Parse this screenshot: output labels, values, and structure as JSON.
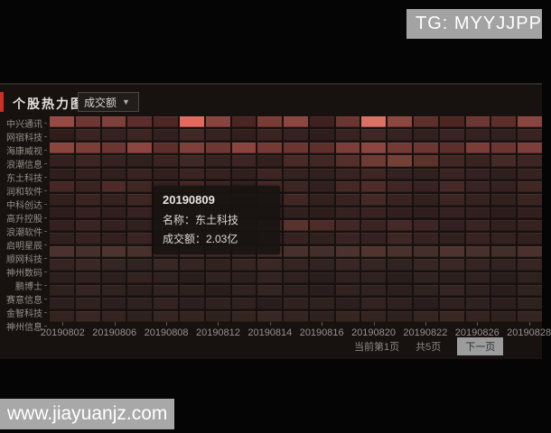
{
  "overlays": {
    "tg_label": "TG: MYYJJPP",
    "watermark": "www.jiayuanjz.com"
  },
  "panel": {
    "title": "个股热力图",
    "metric_dropdown": {
      "value": "成交额",
      "caret": "▼"
    }
  },
  "tooltip": {
    "date": "20190809",
    "name_line": "名称：东土科技",
    "value_line": "成交额：2.03亿"
  },
  "pagination": {
    "current": "当前第1页",
    "total": "共5页",
    "next": "下一页"
  },
  "chart_data": {
    "type": "heatmap",
    "title": "个股热力图",
    "metric": "成交额",
    "legend_position": "none",
    "rows": [
      "中兴通讯",
      "网宿科技",
      "海康威视",
      "浪潮信息",
      "东土科技",
      "润和软件",
      "中科创达",
      "高升控股",
      "浪潮软件",
      "启明星辰",
      "顺网科技",
      "神州数码",
      "鹏博士",
      "赛意信息",
      "金智科技",
      "神州信息"
    ],
    "n_columns": 19,
    "x_tick_labels": [
      "20190802",
      "20190806",
      "20190808",
      "20190812",
      "20190814",
      "20190816",
      "20190820",
      "20190822",
      "20190826",
      "20190828"
    ],
    "highlight": {
      "row": "东土科技",
      "date": "20190809",
      "value": "2.03亿"
    },
    "cells": [
      [
        "#954a44",
        "#6e3733",
        "#7d403b",
        "#5c2e2b",
        "#4c2724",
        "#e26a5c",
        "#8a443f",
        "#4a2522",
        "#7a3c37",
        "#8c4540",
        "#3f2220",
        "#6b3531",
        "#d97265",
        "#8c4741",
        "#5d302c",
        "#4b2623",
        "#6c3733",
        "#5c2f2b",
        "#8a4540"
      ],
      [
        "#2e1d1b",
        "#3a2422",
        "#342120",
        "#3c2523",
        "#32201e",
        "#402826",
        "#362221",
        "#301f1d",
        "#3a2422",
        "#342120",
        "#2e1d1b",
        "#382322",
        "#3e2724",
        "#362221",
        "#31201e",
        "#3a2423",
        "#342120",
        "#30201e",
        "#382322"
      ],
      [
        "#8a453f",
        "#7b3e39",
        "#6b3632",
        "#8c4540",
        "#5c2f2b",
        "#7d403b",
        "#6d3733",
        "#8a443e",
        "#743a36",
        "#6b3532",
        "#5d302c",
        "#7b3e3a",
        "#8c4641",
        "#743b36",
        "#6c3733",
        "#5c2f2c",
        "#7a3d38",
        "#6b3632",
        "#7c3f3a"
      ],
      [
        "#34211f",
        "#3c2523",
        "#362221",
        "#30201e",
        "#3a2422",
        "#402826",
        "#362221",
        "#3c2524",
        "#32201e",
        "#4a2a27",
        "#422825",
        "#55302b",
        "#6e3a34",
        "#74403a",
        "#5c322d",
        "#422825",
        "#3a2422",
        "#452a27",
        "#3c2523"
      ],
      [
        "#2e1e1c",
        "#342120",
        "#30201e",
        "#382322",
        "#32201e",
        "#3a2423",
        "#342120",
        "#2f1f1d",
        "#3c2523",
        "#342221",
        "#30201e",
        "#382322",
        "#3e2624",
        "#342121",
        "#30201e",
        "#3a2423",
        "#342121",
        "#2f1f1d",
        "#362221"
      ],
      [
        "#452826",
        "#3a2422",
        "#4c2b28",
        "#402724",
        "#362221",
        "#4a2a27",
        "#3e2624",
        "#342120",
        "#482a26",
        "#3c2523",
        "#30201e",
        "#442926",
        "#4e2c29",
        "#402725",
        "#382322",
        "#442927",
        "#3a2423",
        "#342120",
        "#402724"
      ],
      [
        "#32201e",
        "#3a2422",
        "#342120",
        "#3e2624",
        "#32201e",
        "#422825",
        "#362221",
        "#30201e",
        "#3a2423",
        "#402724",
        "#32201e",
        "#382322",
        "#442926",
        "#382322",
        "#32201e",
        "#3c2523",
        "#362221",
        "#30201e",
        "#3a2422"
      ],
      [
        "#2d1d1b",
        "#342120",
        "#2f1f1d",
        "#362221",
        "#30201e",
        "#382322",
        "#32201e",
        "#2d1e1c",
        "#342121",
        "#30201e",
        "#2c1d1b",
        "#342120",
        "#382322",
        "#32201e",
        "#2e1e1c",
        "#342121",
        "#30201e",
        "#2c1d1b",
        "#32201e"
      ],
      [
        "#34211f",
        "#3a2422",
        "#342120",
        "#30201e",
        "#3c2523",
        "#362221",
        "#32201e",
        "#442926",
        "#4e2d29",
        "#58322c",
        "#4c2b27",
        "#422825",
        "#3a2423",
        "#442927",
        "#3c2524",
        "#342121",
        "#3a2422",
        "#32201e",
        "#362221"
      ],
      [
        "#30201e",
        "#362221",
        "#32201e",
        "#3a2422",
        "#342120",
        "#30201e",
        "#382322",
        "#32201e",
        "#3c2524",
        "#362221",
        "#30201e",
        "#3a2423",
        "#342121",
        "#3e2625",
        "#362221",
        "#30201e",
        "#382322",
        "#342120",
        "#30201e"
      ],
      [
        "#4c322e",
        "#46302b",
        "#4e342f",
        "#48302c",
        "#422e2a",
        "#50342f",
        "#4a312d",
        "#44302b",
        "#4e332e",
        "#48302c",
        "#422e2a",
        "#4c322e",
        "#52342f",
        "#4a312d",
        "#442f2b",
        "#4e332e",
        "#48302c",
        "#422e2a",
        "#4a312d"
      ],
      [
        "#342522",
        "#3a2825",
        "#342623",
        "#302320",
        "#382724",
        "#342522",
        "#302320",
        "#362623",
        "#3a2825",
        "#342522",
        "#302320",
        "#382724",
        "#342623",
        "#302320",
        "#362724",
        "#3a2825",
        "#342522",
        "#302320",
        "#362623"
      ],
      [
        "#2c1f1d",
        "#30221f",
        "#2c1f1d",
        "#32231f",
        "#2e211e",
        "#2a1e1c",
        "#30221f",
        "#2c1f1d",
        "#32231f",
        "#2e211e",
        "#2a1e1c",
        "#30221f",
        "#2e211e",
        "#2a1e1c",
        "#30221f",
        "#2c1f1d",
        "#2e211e",
        "#2a1e1c",
        "#2e211e"
      ],
      [
        "#2e211e",
        "#342422",
        "#30221f",
        "#2c1f1d",
        "#322320",
        "#2e211e",
        "#2a1e1c",
        "#30221f",
        "#342422",
        "#2e211e",
        "#2a1e1c",
        "#322320",
        "#30221f",
        "#2c1f1d",
        "#30221f",
        "#342422",
        "#2e211e",
        "#2a1e1c",
        "#30221f"
      ],
      [
        "#2c1f1d",
        "#30221f",
        "#2c1f1d",
        "#2e211e",
        "#322320",
        "#2c1f1d",
        "#30221f",
        "#2e211e",
        "#2a1e1c",
        "#30221f",
        "#2e211e",
        "#2c1f1d",
        "#322320",
        "#2e211e",
        "#2a1e1c",
        "#2e211e",
        "#30221f",
        "#2c1f1d",
        "#2e211e"
      ],
      [
        "#33241f",
        "#382722",
        "#332420",
        "#2f211d",
        "#362621",
        "#332420",
        "#2f211d",
        "#352520",
        "#382722",
        "#332420",
        "#2f211d",
        "#362621",
        "#332420",
        "#2f211d",
        "#352621",
        "#382722",
        "#332420",
        "#2f211d",
        "#342520"
      ]
    ]
  }
}
